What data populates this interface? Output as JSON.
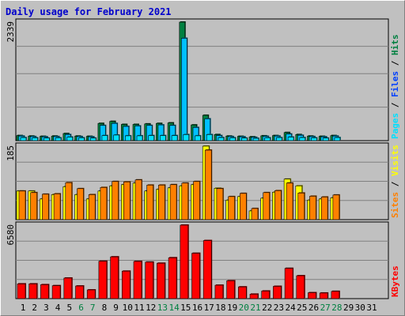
{
  "title": "Daily usage for February 2021",
  "colors": {
    "hits": "#008040",
    "files": "#00c0ff",
    "pages": "#00e0ff",
    "visits": "#ffff00",
    "sites": "#ff8000",
    "kbytes": "#ff0000",
    "weekend_label": "#008040",
    "grid": "#808080",
    "background": "#c0c0c0"
  },
  "chart_data": [
    {
      "type": "bar",
      "panel": "top",
      "ymax_label": "2339",
      "ymax": 2339,
      "legend": [
        "Pages",
        "Files",
        "Hits"
      ],
      "categories": [
        "1",
        "2",
        "3",
        "4",
        "5",
        "6",
        "7",
        "8",
        "9",
        "10",
        "11",
        "12",
        "13",
        "14",
        "15",
        "16",
        "17",
        "18",
        "19",
        "20",
        "21",
        "22",
        "23",
        "24",
        "25",
        "26",
        "27",
        "28",
        "29",
        "30",
        "31"
      ],
      "series": [
        {
          "name": "Hits",
          "values": [
            100,
            90,
            85,
            90,
            140,
            90,
            85,
            340,
            380,
            320,
            320,
            330,
            340,
            350,
            2339,
            310,
            500,
            120,
            90,
            85,
            75,
            95,
            100,
            160,
            120,
            90,
            85,
            100,
            0,
            0,
            0
          ]
        },
        {
          "name": "Files",
          "values": [
            90,
            80,
            75,
            80,
            120,
            80,
            75,
            300,
            340,
            280,
            290,
            300,
            310,
            300,
            2020,
            260,
            430,
            100,
            80,
            75,
            65,
            85,
            90,
            130,
            105,
            80,
            75,
            90,
            0,
            0,
            0
          ]
        },
        {
          "name": "Pages",
          "values": [
            60,
            55,
            50,
            55,
            70,
            55,
            50,
            100,
            110,
            95,
            95,
            100,
            100,
            100,
            120,
            95,
            120,
            60,
            55,
            50,
            45,
            55,
            60,
            70,
            60,
            55,
            50,
            60,
            0,
            0,
            0
          ]
        }
      ]
    },
    {
      "type": "bar",
      "panel": "middle",
      "ymax_label": "185",
      "ymax": 185,
      "legend": [
        "Sites",
        "Visits"
      ],
      "categories": [
        "1",
        "2",
        "3",
        "4",
        "5",
        "6",
        "7",
        "8",
        "9",
        "10",
        "11",
        "12",
        "13",
        "14",
        "15",
        "16",
        "17",
        "18",
        "19",
        "20",
        "21",
        "22",
        "23",
        "24",
        "25",
        "26",
        "27",
        "28",
        "29",
        "30",
        "31"
      ],
      "series": [
        {
          "name": "Visits",
          "values": [
            72,
            72,
            52,
            63,
            83,
            63,
            52,
            72,
            85,
            88,
            92,
            72,
            76,
            80,
            85,
            88,
            185,
            79,
            49,
            58,
            22,
            54,
            69,
            102,
            85,
            49,
            52,
            55,
            0,
            0,
            0
          ]
        },
        {
          "name": "Sites",
          "values": [
            72,
            68,
            64,
            65,
            93,
            78,
            63,
            81,
            96,
            95,
            100,
            87,
            87,
            88,
            92,
            96,
            175,
            78,
            58,
            66,
            28,
            68,
            73,
            92,
            67,
            59,
            57,
            62,
            0,
            0,
            0
          ]
        }
      ]
    },
    {
      "type": "bar",
      "panel": "bottom",
      "ymax_label": "6580",
      "ymax": 6580,
      "legend": [
        "KBytes"
      ],
      "categories": [
        "1",
        "2",
        "3",
        "4",
        "5",
        "6",
        "7",
        "8",
        "9",
        "10",
        "11",
        "12",
        "13",
        "14",
        "15",
        "16",
        "17",
        "18",
        "19",
        "20",
        "21",
        "22",
        "23",
        "24",
        "25",
        "26",
        "27",
        "28",
        "29",
        "30",
        "31"
      ],
      "series": [
        {
          "name": "KBytes",
          "values": [
            1320,
            1320,
            1250,
            1160,
            1840,
            1130,
            780,
            3350,
            3740,
            2460,
            3330,
            3270,
            3170,
            3660,
            6580,
            4060,
            5200,
            1200,
            1600,
            1050,
            400,
            680,
            1100,
            2710,
            2050,
            530,
            500,
            650,
            0,
            0,
            0
          ]
        }
      ]
    }
  ],
  "x_labels": [
    "1",
    "2",
    "3",
    "4",
    "5",
    "6",
    "7",
    "8",
    "9",
    "10",
    "11",
    "12",
    "13",
    "14",
    "15",
    "16",
    "17",
    "18",
    "19",
    "20",
    "21",
    "22",
    "23",
    "24",
    "25",
    "26",
    "27",
    "28",
    "29",
    "30",
    "31"
  ],
  "weekend_days": [
    6,
    7,
    13,
    14,
    20,
    21,
    27,
    28
  ]
}
